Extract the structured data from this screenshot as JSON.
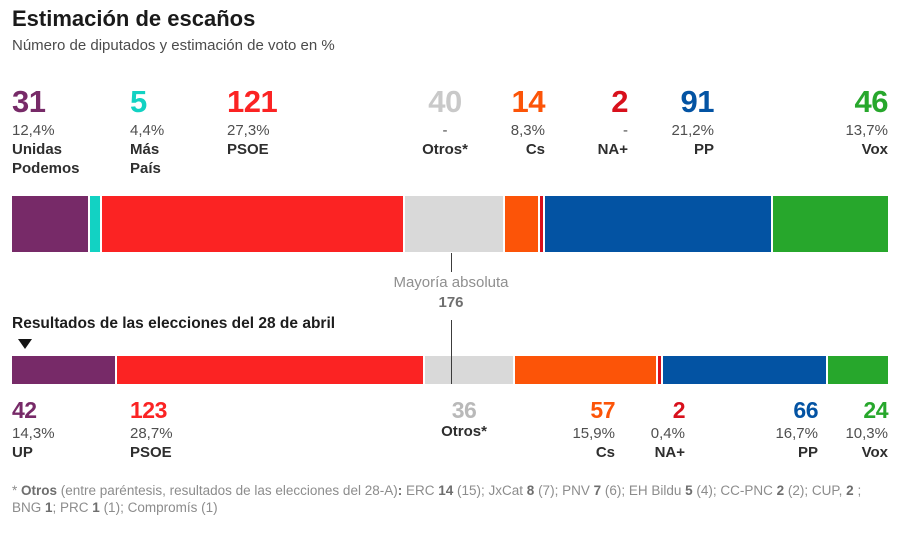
{
  "header": {
    "title": "Estimación de escaños",
    "subtitle": "Número de diputados y estimación de voto en %"
  },
  "estimation": {
    "stats": [
      {
        "party": "Unidas Podemos",
        "seats": "31",
        "pct": "12,4%",
        "lines": [
          "Unidas",
          "Podemos"
        ],
        "color": "#772a68"
      },
      {
        "party": "Más País",
        "seats": "5",
        "pct": "4,4%",
        "lines": [
          "Más",
          "País"
        ],
        "color": "#12d2c3"
      },
      {
        "party": "PSOE",
        "seats": "121",
        "pct": "27,3%",
        "lines": [
          "PSOE"
        ],
        "color": "#fb2323"
      },
      {
        "party": "Otros*",
        "seats": "40",
        "pct": "-",
        "lines": [
          "Otros*"
        ],
        "color": "#c9c9c9"
      },
      {
        "party": "Cs",
        "seats": "14",
        "pct": "8,3%",
        "lines": [
          "Cs"
        ],
        "color": "#fc5408"
      },
      {
        "party": "NA+",
        "seats": "2",
        "pct": "-",
        "lines": [
          "NA+"
        ],
        "color": "#d8101c"
      },
      {
        "party": "PP",
        "seats": "91",
        "pct": "21,2%",
        "lines": [
          "PP"
        ],
        "color": "#0353a3"
      },
      {
        "party": "Vox",
        "seats": "46",
        "pct": "13,7%",
        "lines": [
          "Vox"
        ],
        "color": "#27a72c"
      }
    ],
    "segments": [
      {
        "party": "Unidas Podemos",
        "seats": 31,
        "color": "#772a68"
      },
      {
        "party": "Más País",
        "seats": 5,
        "color": "#12d2c3"
      },
      {
        "party": "PSOE",
        "seats": 121,
        "color": "#fb2323"
      },
      {
        "party": "Otros",
        "seats": 40,
        "color": "#d9d9d9"
      },
      {
        "party": "Cs",
        "seats": 14,
        "color": "#fc5408"
      },
      {
        "party": "NA+",
        "seats": 2,
        "color": "#d8101c"
      },
      {
        "party": "PP",
        "seats": 91,
        "color": "#0353a3"
      },
      {
        "party": "Vox",
        "seats": 46,
        "color": "#27a72c"
      }
    ]
  },
  "majority": {
    "label": "Mayoría absoluta",
    "value": "176"
  },
  "results": {
    "heading": "Resultados de las elecciones del 28 de abril",
    "stats": [
      {
        "party": "UP",
        "seats": "42",
        "pct": "14,3%",
        "lines": [
          "UP"
        ],
        "color": "#772a68"
      },
      {
        "party": "PSOE",
        "seats": "123",
        "pct": "28,7%",
        "lines": [
          "PSOE"
        ],
        "color": "#fb2323"
      },
      {
        "party": "Otros*",
        "seats": "36",
        "pct": "",
        "lines": [
          "Otros*"
        ],
        "color": "#b9b9b9"
      },
      {
        "party": "Cs",
        "seats": "57",
        "pct": "15,9%",
        "lines": [
          "Cs"
        ],
        "color": "#fc5408"
      },
      {
        "party": "NA+",
        "seats": "2",
        "pct": "0,4%",
        "lines": [
          "NA+"
        ],
        "color": "#d8101c"
      },
      {
        "party": "PP",
        "seats": "66",
        "pct": "16,7%",
        "lines": [
          "PP"
        ],
        "color": "#0353a3"
      },
      {
        "party": "Vox",
        "seats": "24",
        "pct": "10,3%",
        "lines": [
          "Vox"
        ],
        "color": "#27a72c"
      }
    ],
    "segments": [
      {
        "party": "UP",
        "seats": 42,
        "color": "#772a68"
      },
      {
        "party": "PSOE",
        "seats": 123,
        "color": "#fb2323"
      },
      {
        "party": "Otros",
        "seats": 36,
        "color": "#d9d9d9"
      },
      {
        "party": "Cs",
        "seats": 57,
        "color": "#fc5408"
      },
      {
        "party": "NA+",
        "seats": 2,
        "color": "#d8101c"
      },
      {
        "party": "PP",
        "seats": 66,
        "color": "#0353a3"
      },
      {
        "party": "Vox",
        "seats": 24,
        "color": "#27a72c"
      }
    ]
  },
  "footnote": {
    "parts": [
      {
        "t": "* ",
        "b": false
      },
      {
        "t": "Otros",
        "b": true
      },
      {
        "t": " (entre paréntesis, resultados de las elecciones del 28-A)",
        "b": false
      },
      {
        "t": ":",
        "b": true
      },
      {
        "t": " ERC ",
        "b": false
      },
      {
        "t": "14",
        "b": true
      },
      {
        "t": " (15); JxCat ",
        "b": false
      },
      {
        "t": "8",
        "b": true
      },
      {
        "t": " (7); PNV ",
        "b": false
      },
      {
        "t": "7",
        "b": true
      },
      {
        "t": " (6); EH Bildu ",
        "b": false
      },
      {
        "t": "5",
        "b": true
      },
      {
        "t": " (4); CC-PNC ",
        "b": false
      },
      {
        "t": "2",
        "b": true
      },
      {
        "t": " (2); CUP, ",
        "b": false
      },
      {
        "t": "2",
        "b": true
      },
      {
        "t": " ; BNG ",
        "b": false
      },
      {
        "t": "1",
        "b": true
      },
      {
        "t": "; PRC ",
        "b": false
      },
      {
        "t": "1",
        "b": true
      },
      {
        "t": " (1); Compromís (1)",
        "b": false
      }
    ]
  },
  "chart_data": [
    {
      "type": "bar",
      "subtype": "stacked-horizontal",
      "title": "Estimación de escaños",
      "subtitle": "Número de diputados y estimación de voto en %",
      "categories": [
        "Unidas Podemos",
        "Más País",
        "PSOE",
        "Otros*",
        "Cs",
        "NA+",
        "PP",
        "Vox"
      ],
      "values": [
        31,
        5,
        121,
        40,
        14,
        2,
        91,
        46
      ],
      "vote_pct": [
        "12,4%",
        "4,4%",
        "27,3%",
        "-",
        "8,3%",
        "-",
        "21,2%",
        "13,7%"
      ],
      "colors": [
        "#772a68",
        "#12d2c3",
        "#fb2323",
        "#d9d9d9",
        "#fc5408",
        "#d8101c",
        "#0353a3",
        "#27a72c"
      ],
      "total": 350,
      "annotation": {
        "label": "Mayoría absoluta",
        "value": 176
      }
    },
    {
      "type": "bar",
      "subtype": "stacked-horizontal",
      "title": "Resultados de las elecciones del 28 de abril",
      "categories": [
        "UP",
        "PSOE",
        "Otros*",
        "Cs",
        "NA+",
        "PP",
        "Vox"
      ],
      "values": [
        42,
        123,
        36,
        57,
        2,
        66,
        24
      ],
      "vote_pct": [
        "14,3%",
        "28,7%",
        "",
        "15,9%",
        "0,4%",
        "16,7%",
        "10,3%"
      ],
      "colors": [
        "#772a68",
        "#fb2323",
        "#d9d9d9",
        "#fc5408",
        "#d8101c",
        "#0353a3",
        "#27a72c"
      ],
      "total": 350
    }
  ]
}
